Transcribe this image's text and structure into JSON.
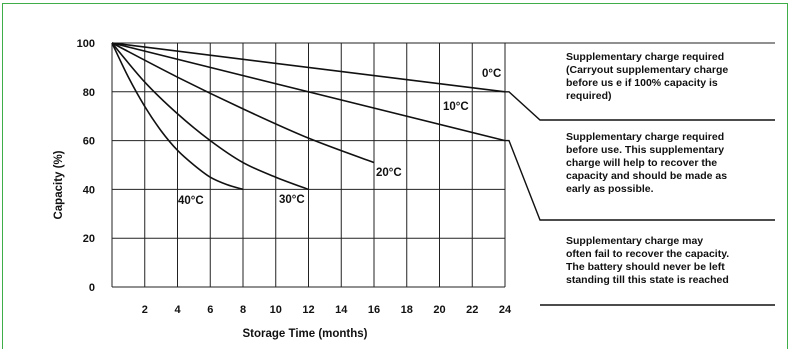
{
  "chart_data": {
    "type": "line",
    "xlabel": "Storage Time (months)",
    "ylabel": "Capacity (%)",
    "xlim": [
      0,
      24
    ],
    "ylim": [
      0,
      100
    ],
    "x_ticks": [
      2,
      4,
      6,
      8,
      10,
      12,
      14,
      16,
      18,
      20,
      22,
      24
    ],
    "y_ticks": [
      0,
      20,
      40,
      60,
      80,
      100
    ],
    "grid": true,
    "series": [
      {
        "name": "0°C",
        "x": [
          0,
          24
        ],
        "y": [
          100,
          80
        ]
      },
      {
        "name": "10°C",
        "x": [
          0,
          24
        ],
        "y": [
          100,
          60
        ]
      },
      {
        "name": "20°C",
        "x": [
          0,
          4,
          8,
          12,
          16
        ],
        "y": [
          100,
          86,
          73,
          61,
          51
        ]
      },
      {
        "name": "30°C",
        "x": [
          0,
          2,
          4,
          6,
          8,
          10,
          12
        ],
        "y": [
          100,
          84,
          71,
          60,
          51,
          45,
          40
        ]
      },
      {
        "name": "40°C",
        "x": [
          0,
          1,
          2,
          3,
          4,
          5,
          6,
          7,
          8
        ],
        "y": [
          100,
          86,
          74,
          64,
          56,
          50,
          45,
          42,
          40
        ]
      }
    ],
    "annotations": [
      {
        "id": "note1",
        "lines": [
          "Supplementary charge required",
          "(Carryout supplementary charge",
          "before us e if 100%  capacity is",
          "required)"
        ]
      },
      {
        "id": "note2",
        "lines": [
          "Supplementary charge required",
          "before use. This supplementary",
          "charge will help to recover the",
          "capacity and should be made as",
          "early as possible."
        ]
      },
      {
        "id": "note3",
        "lines": [
          "Supplementary charge may",
          "often fail to recover the capacity.",
          "The battery should never be left",
          "standing till this state is reached"
        ]
      }
    ]
  }
}
